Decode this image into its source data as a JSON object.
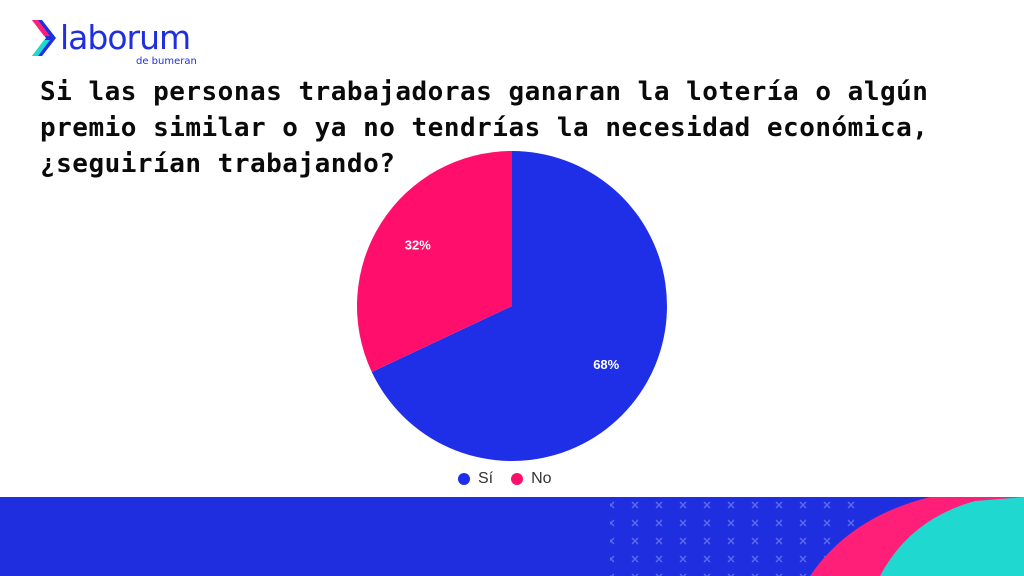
{
  "brand": {
    "name": "laborum",
    "tagline": "de bumeran",
    "accent": "#1f2fe0",
    "accent_pink": "#ff1e78",
    "accent_teal": "#1fd8d0"
  },
  "question": "Si las personas trabajadoras ganaran la lotería o algún premio similar o ya no tendrías la necesidad económica, ¿seguirían trabajando?",
  "chart_data": {
    "type": "pie",
    "title": "Si las personas trabajadoras ganaran la lotería o algún premio similar o ya no tendrías la necesidad económica, ¿seguirían trabajando?",
    "slices": [
      {
        "label": "Sí",
        "value": 68,
        "display": "68%",
        "color": "#1f2fe8"
      },
      {
        "label": "No",
        "value": 32,
        "display": "32%",
        "color": "#ff0f6b"
      }
    ],
    "start_angle": "12 o'clock",
    "direction": "clockwise",
    "legend_position": "bottom"
  }
}
